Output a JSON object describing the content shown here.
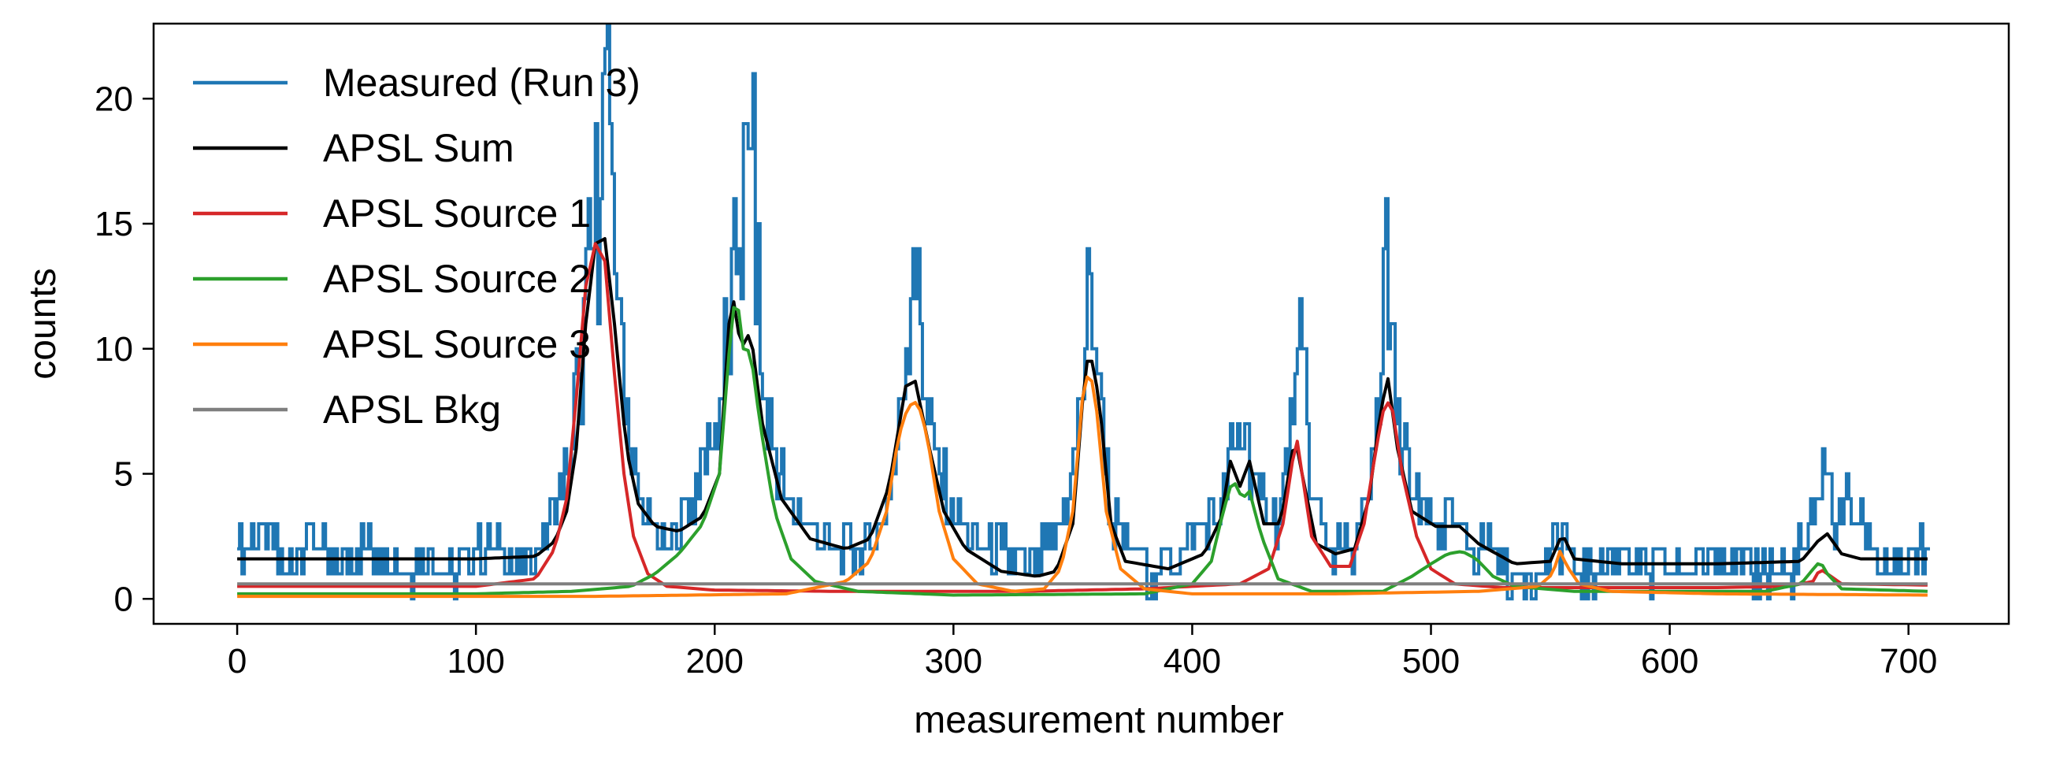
{
  "chart_data": {
    "type": "line",
    "xlabel": "measurement number",
    "ylabel": "counts",
    "xlim": [
      -35,
      742
    ],
    "ylim": [
      -1,
      23
    ],
    "xticks": [
      0,
      100,
      200,
      300,
      400,
      500,
      600,
      700
    ],
    "yticks": [
      0,
      5,
      10,
      15,
      20
    ],
    "grid": false,
    "legend_position": "upper-left",
    "x_range": [
      0,
      708
    ],
    "colors": {
      "measured": "#1f77b4",
      "sum": "#000000",
      "source1": "#d62728",
      "source2": "#2ca02c",
      "source3": "#ff7f0e",
      "bkg": "#7f7f7f"
    },
    "series": [
      {
        "name": "Measured (Run 3)",
        "style": "steps",
        "approx": true,
        "points": [
          [
            0,
            2
          ],
          [
            10,
            3
          ],
          [
            20,
            1
          ],
          [
            30,
            3
          ],
          [
            40,
            1
          ],
          [
            50,
            2
          ],
          [
            60,
            2
          ],
          [
            70,
            1
          ],
          [
            80,
            2
          ],
          [
            90,
            1
          ],
          [
            100,
            2
          ],
          [
            110,
            2
          ],
          [
            120,
            1
          ],
          [
            130,
            3
          ],
          [
            138,
            5
          ],
          [
            143,
            9
          ],
          [
            148,
            14
          ],
          [
            152,
            16
          ],
          [
            154,
            22
          ],
          [
            156,
            19
          ],
          [
            160,
            12
          ],
          [
            164,
            6
          ],
          [
            170,
            3
          ],
          [
            180,
            2
          ],
          [
            190,
            4
          ],
          [
            198,
            6
          ],
          [
            205,
            10
          ],
          [
            210,
            14
          ],
          [
            215,
            18
          ],
          [
            220,
            8
          ],
          [
            230,
            4
          ],
          [
            240,
            3
          ],
          [
            250,
            2
          ],
          [
            260,
            2
          ],
          [
            270,
            3
          ],
          [
            276,
            6
          ],
          [
            280,
            10
          ],
          [
            283,
            14
          ],
          [
            288,
            8
          ],
          [
            292,
            6
          ],
          [
            300,
            3
          ],
          [
            310,
            2
          ],
          [
            320,
            2
          ],
          [
            330,
            1
          ],
          [
            340,
            2
          ],
          [
            348,
            4
          ],
          [
            353,
            8
          ],
          [
            357,
            13
          ],
          [
            361,
            9
          ],
          [
            366,
            3
          ],
          [
            375,
            2
          ],
          [
            385,
            1
          ],
          [
            395,
            2
          ],
          [
            405,
            3
          ],
          [
            412,
            4
          ],
          [
            417,
            6
          ],
          [
            422,
            7
          ],
          [
            428,
            4
          ],
          [
            436,
            3
          ],
          [
            442,
            7
          ],
          [
            446,
            10
          ],
          [
            450,
            4
          ],
          [
            458,
            2
          ],
          [
            466,
            2
          ],
          [
            474,
            4
          ],
          [
            479,
            9
          ],
          [
            481,
            16
          ],
          [
            485,
            7
          ],
          [
            492,
            4
          ],
          [
            500,
            3
          ],
          [
            510,
            3
          ],
          [
            517,
            2
          ],
          [
            525,
            2
          ],
          [
            535,
            1
          ],
          [
            545,
            1
          ],
          [
            553,
            2
          ],
          [
            556,
            3
          ],
          [
            560,
            1
          ],
          [
            570,
            1
          ],
          [
            580,
            2
          ],
          [
            590,
            1
          ],
          [
            600,
            1
          ],
          [
            610,
            1
          ],
          [
            620,
            2
          ],
          [
            630,
            1
          ],
          [
            640,
            1
          ],
          [
            650,
            1
          ],
          [
            660,
            3
          ],
          [
            664,
            6
          ],
          [
            668,
            3
          ],
          [
            675,
            4
          ],
          [
            685,
            2
          ],
          [
            695,
            1
          ],
          [
            708,
            2
          ]
        ]
      },
      {
        "name": "APSL Sum",
        "style": "line",
        "approx": true,
        "points": [
          [
            0,
            1.6
          ],
          [
            100,
            1.6
          ],
          [
            125,
            1.7
          ],
          [
            133,
            2.3
          ],
          [
            138,
            3.5
          ],
          [
            142,
            6
          ],
          [
            146,
            11
          ],
          [
            150,
            14.2
          ],
          [
            154,
            14.4
          ],
          [
            158,
            11
          ],
          [
            163,
            6
          ],
          [
            168,
            3.8
          ],
          [
            175,
            2.9
          ],
          [
            185,
            2.7
          ],
          [
            195,
            3.3
          ],
          [
            202,
            5
          ],
          [
            207,
            12.5
          ],
          [
            211,
            10
          ],
          [
            215,
            10.7
          ],
          [
            220,
            7
          ],
          [
            228,
            4
          ],
          [
            240,
            2.4
          ],
          [
            255,
            2
          ],
          [
            265,
            2.4
          ],
          [
            273,
            4.5
          ],
          [
            280,
            8.5
          ],
          [
            284,
            8.7
          ],
          [
            290,
            6
          ],
          [
            296,
            3.5
          ],
          [
            305,
            2
          ],
          [
            320,
            1.1
          ],
          [
            335,
            0.9
          ],
          [
            343,
            1.1
          ],
          [
            350,
            3
          ],
          [
            355,
            9
          ],
          [
            357,
            10
          ],
          [
            361,
            8
          ],
          [
            366,
            3
          ],
          [
            372,
            1.5
          ],
          [
            390,
            1.2
          ],
          [
            405,
            1.8
          ],
          [
            412,
            3.2
          ],
          [
            416,
            5.5
          ],
          [
            420,
            4.5
          ],
          [
            424,
            5.5
          ],
          [
            430,
            3
          ],
          [
            437,
            3
          ],
          [
            443,
            6.5
          ],
          [
            446,
            5
          ],
          [
            452,
            2.2
          ],
          [
            460,
            1.8
          ],
          [
            468,
            2
          ],
          [
            474,
            4
          ],
          [
            479,
            7.6
          ],
          [
            482,
            8.8
          ],
          [
            486,
            6
          ],
          [
            492,
            3.5
          ],
          [
            502,
            2.9
          ],
          [
            512,
            2.9
          ],
          [
            520,
            2.2
          ],
          [
            535,
            1.4
          ],
          [
            550,
            1.5
          ],
          [
            555,
            2.6
          ],
          [
            560,
            1.6
          ],
          [
            580,
            1.4
          ],
          [
            620,
            1.4
          ],
          [
            655,
            1.5
          ],
          [
            662,
            2.3
          ],
          [
            666,
            2.6
          ],
          [
            672,
            1.8
          ],
          [
            680,
            1.6
          ],
          [
            708,
            1.6
          ]
        ]
      },
      {
        "name": "APSL Source 1",
        "style": "line",
        "approx": true,
        "points": [
          [
            0,
            0.5
          ],
          [
            100,
            0.5
          ],
          [
            125,
            0.8
          ],
          [
            133,
            2
          ],
          [
            138,
            4
          ],
          [
            142,
            8
          ],
          [
            146,
            12.5
          ],
          [
            150,
            14.2
          ],
          [
            154,
            13.5
          ],
          [
            158,
            9
          ],
          [
            162,
            5
          ],
          [
            166,
            2.5
          ],
          [
            172,
            1
          ],
          [
            180,
            0.5
          ],
          [
            200,
            0.35
          ],
          [
            250,
            0.3
          ],
          [
            330,
            0.3
          ],
          [
            380,
            0.4
          ],
          [
            420,
            0.6
          ],
          [
            432,
            1.2
          ],
          [
            438,
            3
          ],
          [
            442,
            5.5
          ],
          [
            444,
            6.3
          ],
          [
            446,
            5
          ],
          [
            450,
            2.5
          ],
          [
            458,
            1.3
          ],
          [
            466,
            1.3
          ],
          [
            472,
            3
          ],
          [
            477,
            6
          ],
          [
            481,
            8
          ],
          [
            484,
            7.5
          ],
          [
            488,
            5
          ],
          [
            494,
            2.5
          ],
          [
            500,
            1.2
          ],
          [
            510,
            0.6
          ],
          [
            530,
            0.45
          ],
          [
            550,
            0.45
          ],
          [
            620,
            0.45
          ],
          [
            650,
            0.5
          ],
          [
            660,
            0.7
          ],
          [
            663,
            1.2
          ],
          [
            666,
            1
          ],
          [
            672,
            0.6
          ],
          [
            708,
            0.55
          ]
        ]
      },
      {
        "name": "APSL Source 2",
        "style": "line",
        "approx": true,
        "points": [
          [
            0,
            0.2
          ],
          [
            100,
            0.2
          ],
          [
            140,
            0.3
          ],
          [
            165,
            0.5
          ],
          [
            175,
            1
          ],
          [
            185,
            1.8
          ],
          [
            195,
            3
          ],
          [
            202,
            5
          ],
          [
            207,
            11
          ],
          [
            209,
            12.3
          ],
          [
            212,
            10
          ],
          [
            215,
            9.9
          ],
          [
            219,
            7
          ],
          [
            225,
            3.5
          ],
          [
            232,
            1.6
          ],
          [
            242,
            0.7
          ],
          [
            260,
            0.3
          ],
          [
            300,
            0.15
          ],
          [
            380,
            0.2
          ],
          [
            400,
            0.6
          ],
          [
            408,
            1.5
          ],
          [
            413,
            3.5
          ],
          [
            417,
            4.8
          ],
          [
            421,
            4
          ],
          [
            424,
            4.3
          ],
          [
            429,
            2.5
          ],
          [
            436,
            0.8
          ],
          [
            450,
            0.3
          ],
          [
            480,
            0.3
          ],
          [
            492,
            0.9
          ],
          [
            500,
            1.4
          ],
          [
            507,
            1.8
          ],
          [
            513,
            1.9
          ],
          [
            519,
            1.6
          ],
          [
            526,
            0.9
          ],
          [
            535,
            0.5
          ],
          [
            560,
            0.3
          ],
          [
            640,
            0.3
          ],
          [
            655,
            0.6
          ],
          [
            661,
            1.3
          ],
          [
            663,
            1.5
          ],
          [
            666,
            1
          ],
          [
            672,
            0.4
          ],
          [
            708,
            0.3
          ]
        ]
      },
      {
        "name": "APSL Source 3",
        "style": "line",
        "approx": true,
        "points": [
          [
            0,
            0.1
          ],
          [
            150,
            0.1
          ],
          [
            230,
            0.2
          ],
          [
            255,
            0.7
          ],
          [
            265,
            1.5
          ],
          [
            272,
            3.5
          ],
          [
            277,
            6.5
          ],
          [
            281,
            7.7
          ],
          [
            285,
            7.9
          ],
          [
            289,
            6.5
          ],
          [
            294,
            3.5
          ],
          [
            300,
            1.6
          ],
          [
            310,
            0.6
          ],
          [
            325,
            0.3
          ],
          [
            338,
            0.4
          ],
          [
            345,
            1.2
          ],
          [
            350,
            3.5
          ],
          [
            354,
            8
          ],
          [
            357,
            9.3
          ],
          [
            360,
            7.5
          ],
          [
            364,
            3.5
          ],
          [
            370,
            1.2
          ],
          [
            380,
            0.4
          ],
          [
            400,
            0.2
          ],
          [
            460,
            0.2
          ],
          [
            520,
            0.3
          ],
          [
            545,
            0.5
          ],
          [
            551,
            1
          ],
          [
            554,
            1.9
          ],
          [
            557,
            1.3
          ],
          [
            562,
            0.6
          ],
          [
            575,
            0.3
          ],
          [
            620,
            0.2
          ],
          [
            708,
            0.15
          ]
        ]
      },
      {
        "name": "APSL Bkg",
        "style": "line",
        "approx": true,
        "points": [
          [
            0,
            0.6
          ],
          [
            708,
            0.6
          ]
        ]
      }
    ],
    "legend": [
      {
        "label": "Measured (Run 3)",
        "color": "#1f77b4"
      },
      {
        "label": "APSL Sum",
        "color": "#000000"
      },
      {
        "label": "APSL Source 1",
        "color": "#d62728"
      },
      {
        "label": "APSL Source 2",
        "color": "#2ca02c"
      },
      {
        "label": "APSL Source 3",
        "color": "#ff7f0e"
      },
      {
        "label": "APSL Bkg",
        "color": "#7f7f7f"
      }
    ]
  }
}
